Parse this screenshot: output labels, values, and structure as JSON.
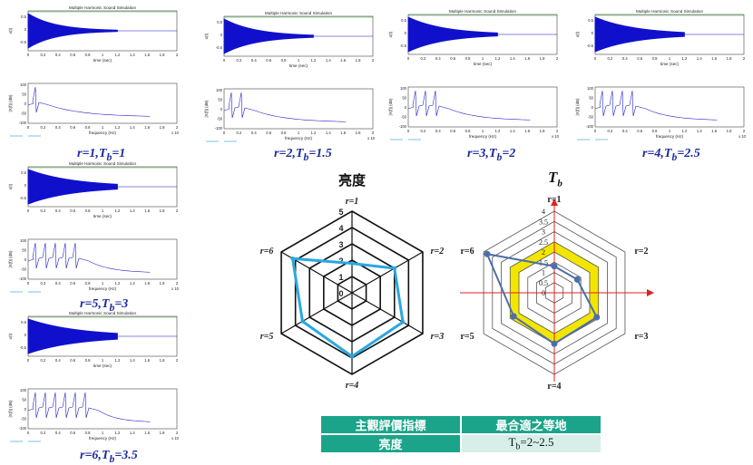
{
  "panels": [
    {
      "id": "p1",
      "harmonics": 1,
      "decay": 1,
      "caption": "r=1,T",
      "sub": "b",
      "value": "=1"
    },
    {
      "id": "p2",
      "harmonics": 2,
      "decay": 1.5,
      "caption": "r=2,T",
      "sub": "b",
      "value": "=1.5"
    },
    {
      "id": "p3",
      "harmonics": 3,
      "decay": 2,
      "caption": "r=3,T",
      "sub": "b",
      "value": "=2"
    },
    {
      "id": "p4",
      "harmonics": 4,
      "decay": 2.5,
      "caption": "r=4,T",
      "sub": "b",
      "value": "=2.5"
    },
    {
      "id": "p5",
      "harmonics": 5,
      "decay": 3,
      "caption": "r=5,T",
      "sub": "b",
      "value": "=3"
    },
    {
      "id": "p6",
      "harmonics": 6,
      "decay": 3.5,
      "caption": "r=6,T",
      "sub": "b",
      "value": "=3.5"
    }
  ],
  "plot_text": {
    "title": "Multiple Harmonic Sound Simulation",
    "time_xlabel": "time (sec)",
    "time_ylabel": "x(t)",
    "freq_xlabel": "frequency (Hz)",
    "freq_ylabel": "|X(f)| (dB)",
    "freq_exp": "x 10",
    "time_ticks": [
      "0",
      "0.2",
      "0.4",
      "0.6",
      "0.8",
      "1",
      "1.2",
      "1.4",
      "1.6",
      "1.8",
      "2"
    ],
    "time_yticks": [
      "0.5",
      "0",
      "-0.5"
    ],
    "freq_ticks": [
      "0",
      "0.2",
      "0.4",
      "0.6",
      "0.8",
      "1",
      "1.2",
      "1.4",
      "1.6",
      "1.8",
      "2"
    ],
    "freq_yticks": [
      "100",
      "50",
      "0",
      "-50",
      "-100"
    ]
  },
  "chart_data": [
    {
      "type": "radar",
      "title": "亮度",
      "axes": [
        "r=1",
        "r=2",
        "r=3",
        "r=4",
        "r=5",
        "r=6"
      ],
      "rmax": 5,
      "ticks": [
        "5",
        "4",
        "3",
        "2",
        "1",
        "0"
      ],
      "series": [
        {
          "values": [
            1.8,
            3.0,
            3.6,
            3.9,
            3.5,
            4.2
          ]
        }
      ],
      "colors": {
        "series": "#29a8e0",
        "grid": "#111111"
      }
    },
    {
      "type": "radar",
      "title": "T",
      "title_sub": "b",
      "axes": [
        "r=1",
        "r=2",
        "r=3",
        "r=4",
        "r=5",
        "r=6"
      ],
      "rmax": 4,
      "ticks": [
        "4",
        "3.5",
        "3",
        "2.5",
        "2",
        "1.5",
        "1",
        "0.5",
        "0"
      ],
      "band": [
        2,
        2.5
      ],
      "series": [
        {
          "values": [
            1.3,
            1.3,
            2.4,
            2.5,
            2.3,
            3.8
          ]
        }
      ],
      "colors": {
        "series": "#4c6fa8",
        "band": "#f2e600",
        "grid": "#555555",
        "axis": "#e02020"
      }
    }
  ],
  "table": {
    "header": [
      "主觀評價指標",
      "最合適之等地"
    ],
    "row_label": "亮度",
    "row_value_main": "T",
    "row_value_sub": "b",
    "row_value_rest": "=2~2.5"
  }
}
